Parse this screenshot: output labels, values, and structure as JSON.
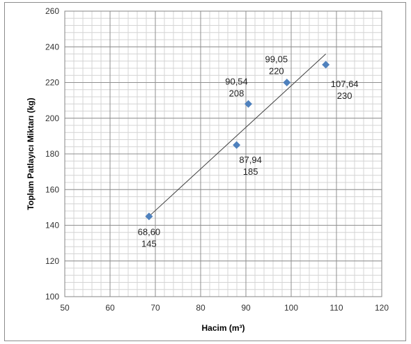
{
  "chart_data": {
    "type": "scatter",
    "xlabel": "Hacim (m³)",
    "ylabel": "Toplam Patlayıcı Miktarı (kg)",
    "xlim": [
      50,
      120
    ],
    "ylim": [
      100,
      260
    ],
    "x_ticks": [
      "50",
      "60",
      "70",
      "80",
      "90",
      "100",
      "110",
      "120"
    ],
    "y_ticks": [
      "100",
      "120",
      "140",
      "160",
      "180",
      "200",
      "220",
      "240",
      "260"
    ],
    "grid": true,
    "minor_grid": true,
    "legend": "none",
    "marker": "diamond",
    "series_color": "#4f81bd",
    "trendline": {
      "type": "linear",
      "x_range": [
        68.6,
        107.64
      ],
      "y_range": [
        145,
        236
      ]
    },
    "points": [
      {
        "x": 68.6,
        "y": 145,
        "x_label": "68,60",
        "y_label": "145"
      },
      {
        "x": 87.94,
        "y": 185,
        "x_label": "87,94",
        "y_label": "185"
      },
      {
        "x": 90.54,
        "y": 208,
        "x_label": "90,54",
        "y_label": "208"
      },
      {
        "x": 99.05,
        "y": 220,
        "x_label": "99,05",
        "y_label": "220"
      },
      {
        "x": 107.64,
        "y": 230,
        "x_label": "107,64",
        "y_label": "230"
      }
    ]
  }
}
